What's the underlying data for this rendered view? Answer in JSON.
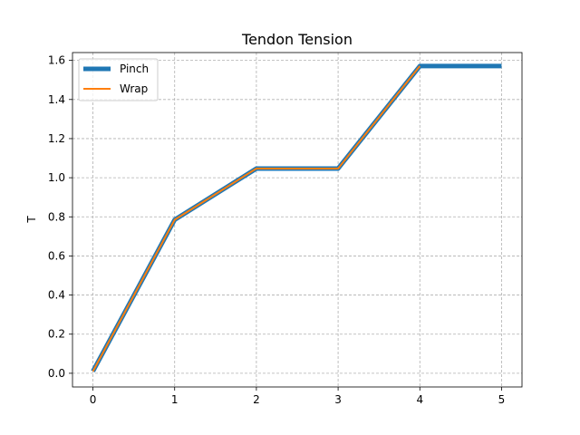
{
  "chart_data": {
    "type": "line",
    "title": "Tendon Tension",
    "xlabel": "",
    "ylabel": "T",
    "xlim": [
      -0.25,
      5.25
    ],
    "ylim": [
      -0.07,
      1.64
    ],
    "xticks": [
      0,
      1,
      2,
      3,
      4,
      5
    ],
    "yticks": [
      0.0,
      0.2,
      0.4,
      0.6,
      0.8,
      1.0,
      1.2,
      1.4,
      1.6
    ],
    "ytick_labels": [
      "0.0",
      "0.2",
      "0.4",
      "0.6",
      "0.8",
      "1.0",
      "1.2",
      "1.4",
      "1.6"
    ],
    "xtick_labels": [
      "0",
      "1",
      "2",
      "3",
      "4",
      "5"
    ],
    "grid": true,
    "legend_position": "upper-left",
    "series": [
      {
        "name": "Pinch",
        "color": "#1f77b4",
        "x": [
          0,
          1,
          2,
          3,
          4,
          5
        ],
        "y": [
          0.01,
          0.785,
          1.047,
          1.047,
          1.571,
          1.571
        ]
      },
      {
        "name": "Wrap",
        "color": "#ff7f0e",
        "x": [
          0,
          1,
          2,
          3,
          4
        ],
        "y": [
          0.01,
          0.785,
          1.047,
          1.047,
          1.571
        ]
      }
    ]
  }
}
